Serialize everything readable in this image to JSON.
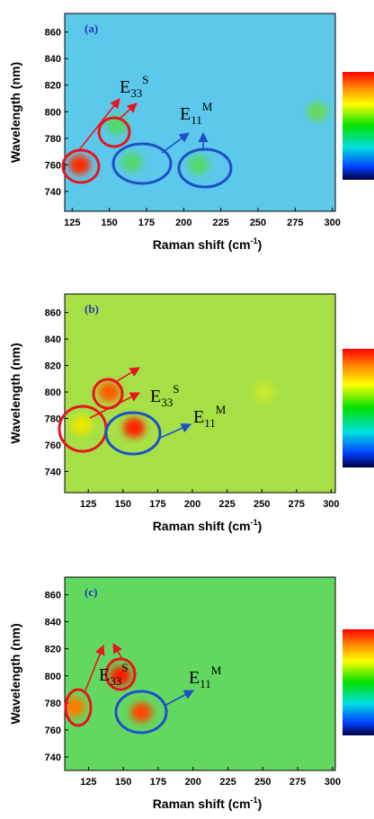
{
  "chart_data": [
    {
      "type": "heatmap",
      "panel_label": "(a)",
      "ylabel": "Wavelength (nm)",
      "xlabel": "Raman shift (cm",
      "xlabel_sup": "-1",
      "xlabel_end": ")",
      "xlim": [
        120,
        302
      ],
      "ylim": [
        725,
        874
      ],
      "xticks": [
        125,
        150,
        175,
        200,
        225,
        250,
        275,
        300
      ],
      "yticks": [
        740,
        760,
        780,
        800,
        820,
        840,
        860
      ],
      "background": "#5cc8ec",
      "hotspots": [
        {
          "x": 130,
          "y": 760,
          "color": "#ff2a00"
        },
        {
          "x": 155,
          "y": 790,
          "color": "#4fd86a"
        },
        {
          "x": 165,
          "y": 762,
          "color": "#52d870"
        },
        {
          "x": 210,
          "y": 760,
          "color": "#52d870"
        },
        {
          "x": 290,
          "y": 800,
          "color": "#66d860"
        }
      ],
      "annotations": [
        {
          "base": "E",
          "sub": "33",
          "sup": "S"
        },
        {
          "base": "E",
          "sub": "11",
          "sup": "M"
        }
      ]
    },
    {
      "type": "heatmap",
      "panel_label": "(b)",
      "ylabel": "Wavelength (nm)",
      "xlabel": "Raman shift (cm",
      "xlabel_sup": "-1",
      "xlabel_end": ")",
      "xlim": [
        108,
        303
      ],
      "ylim": [
        724,
        874
      ],
      "xticks": [
        125,
        150,
        175,
        200,
        225,
        250,
        275,
        300
      ],
      "yticks": [
        740,
        760,
        780,
        800,
        820,
        840,
        860
      ],
      "background": "#a6e046",
      "hotspots": [
        {
          "x": 140,
          "y": 800,
          "color": "#ff5a00"
        },
        {
          "x": 158,
          "y": 773,
          "color": "#ff2000"
        },
        {
          "x": 120,
          "y": 775,
          "color": "#e8e800"
        },
        {
          "x": 252,
          "y": 800,
          "color": "#c8e830"
        }
      ],
      "annotations": [
        {
          "base": "E",
          "sub": "33",
          "sup": "S"
        },
        {
          "base": "E",
          "sub": "11",
          "sup": "M"
        }
      ]
    },
    {
      "type": "heatmap",
      "panel_label": "(c)",
      "ylabel": "Wavelength (nm)",
      "xlabel": "Raman shift (cm",
      "xlabel_sup": "-1",
      "xlabel_end": ")",
      "xlim": [
        108,
        302
      ],
      "ylim": [
        730,
        873
      ],
      "xticks": [
        125,
        150,
        175,
        200,
        225,
        250,
        275,
        300
      ],
      "yticks": [
        740,
        760,
        780,
        800,
        820,
        840,
        860
      ],
      "background": "#62d860",
      "hotspots": [
        {
          "x": 148,
          "y": 800,
          "color": "#ff1a00"
        },
        {
          "x": 115,
          "y": 777,
          "color": "#ff7a00"
        },
        {
          "x": 163,
          "y": 773,
          "color": "#ff4a00"
        }
      ],
      "annotations": [
        {
          "base": "E",
          "sub": "33",
          "sup": "S"
        },
        {
          "base": "E",
          "sub": "11",
          "sup": "M"
        }
      ]
    }
  ]
}
